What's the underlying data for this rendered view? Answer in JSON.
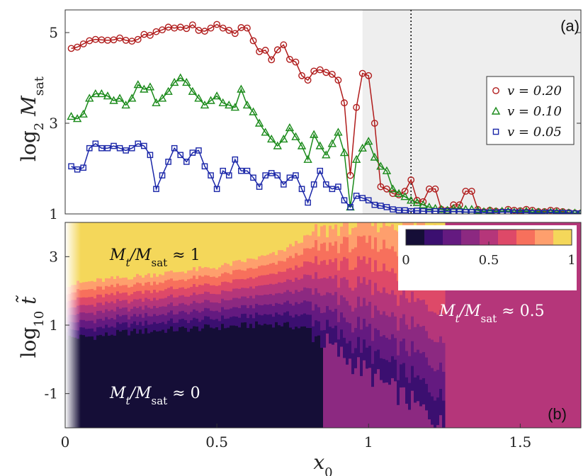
{
  "chart_data": [
    {
      "type": "line",
      "panel_label": "(a)",
      "ylabel": "log₂ M_sat",
      "xlim": [
        0,
        1.7
      ],
      "ylim": [
        1,
        5.5
      ],
      "yticks": [
        "1",
        "3",
        "5"
      ],
      "shaded_region_x": [
        0.98,
        1.7
      ],
      "dotted_line_x": 1.14,
      "legend_position": "right",
      "series": [
        {
          "name": "v = 0.20",
          "color": "#b01c1c",
          "marker": "circle",
          "x": [
            0.02,
            0.04,
            0.06,
            0.08,
            0.1,
            0.12,
            0.14,
            0.16,
            0.18,
            0.2,
            0.22,
            0.24,
            0.26,
            0.28,
            0.3,
            0.32,
            0.34,
            0.36,
            0.38,
            0.4,
            0.42,
            0.44,
            0.46,
            0.48,
            0.5,
            0.52,
            0.54,
            0.56,
            0.58,
            0.6,
            0.62,
            0.64,
            0.66,
            0.68,
            0.7,
            0.72,
            0.74,
            0.76,
            0.78,
            0.8,
            0.82,
            0.84,
            0.86,
            0.88,
            0.9,
            0.92,
            0.94,
            0.96,
            0.98,
            1.0,
            1.02,
            1.04,
            1.06,
            1.08,
            1.1,
            1.12,
            1.14,
            1.16,
            1.18,
            1.2,
            1.22,
            1.24,
            1.26,
            1.28,
            1.3,
            1.32,
            1.34,
            1.36,
            1.38,
            1.4,
            1.42,
            1.44,
            1.46,
            1.48,
            1.5,
            1.52,
            1.54,
            1.56,
            1.58,
            1.6,
            1.62,
            1.64,
            1.66,
            1.68,
            1.7
          ],
          "values": [
            4.65,
            4.68,
            4.75,
            4.82,
            4.85,
            4.84,
            4.83,
            4.84,
            4.88,
            4.83,
            4.81,
            4.85,
            4.96,
            4.94,
            5.02,
            5.06,
            5.12,
            5.1,
            5.12,
            5.09,
            5.17,
            5.05,
            5.03,
            5.1,
            5.18,
            5.1,
            5.05,
            4.98,
            5.11,
            5.1,
            4.82,
            4.58,
            4.61,
            4.4,
            4.62,
            4.73,
            4.41,
            4.35,
            4.05,
            3.95,
            4.15,
            4.18,
            4.12,
            4.08,
            3.95,
            3.45,
            1.85,
            3.35,
            4.1,
            4.05,
            3.0,
            1.6,
            1.55,
            1.45,
            1.42,
            1.5,
            1.75,
            1.3,
            1.27,
            1.55,
            1.55,
            1.1,
            1.08,
            1.2,
            1.2,
            1.5,
            1.5,
            1.1,
            1.05,
            1.08,
            1.06,
            1.05,
            1.1,
            1.08,
            1.07,
            1.1,
            1.08,
            1.05,
            1.05,
            1.08,
            1.07,
            1.05,
            1.03,
            1.02,
            1.02
          ]
        },
        {
          "name": "v = 0.10",
          "color": "#1a8a1a",
          "marker": "triangle",
          "x": [
            0.02,
            0.04,
            0.06,
            0.08,
            0.1,
            0.12,
            0.14,
            0.16,
            0.18,
            0.2,
            0.22,
            0.24,
            0.26,
            0.28,
            0.3,
            0.32,
            0.34,
            0.36,
            0.38,
            0.4,
            0.42,
            0.44,
            0.46,
            0.48,
            0.5,
            0.52,
            0.54,
            0.56,
            0.58,
            0.6,
            0.62,
            0.64,
            0.66,
            0.68,
            0.7,
            0.72,
            0.74,
            0.76,
            0.78,
            0.8,
            0.82,
            0.84,
            0.86,
            0.88,
            0.9,
            0.92,
            0.94,
            0.96,
            0.98,
            1.0,
            1.02,
            1.04,
            1.06,
            1.08,
            1.1,
            1.12,
            1.14,
            1.16,
            1.18,
            1.2,
            1.22,
            1.24,
            1.26,
            1.28,
            1.3,
            1.32,
            1.34,
            1.36,
            1.38,
            1.4,
            1.42,
            1.44,
            1.46,
            1.48,
            1.5,
            1.52,
            1.54,
            1.56,
            1.58,
            1.6,
            1.62,
            1.64,
            1.66,
            1.68,
            1.7
          ],
          "values": [
            3.15,
            3.1,
            3.2,
            3.55,
            3.65,
            3.65,
            3.6,
            3.5,
            3.55,
            3.4,
            3.55,
            3.85,
            3.75,
            3.8,
            3.45,
            3.55,
            3.7,
            3.9,
            4.0,
            3.9,
            3.7,
            3.55,
            3.4,
            3.5,
            3.6,
            3.45,
            3.4,
            3.35,
            3.75,
            3.4,
            3.25,
            3.0,
            2.8,
            2.65,
            2.5,
            2.65,
            2.9,
            2.7,
            2.5,
            2.2,
            2.75,
            2.5,
            2.3,
            2.55,
            2.8,
            2.35,
            1.15,
            2.2,
            2.45,
            2.6,
            2.25,
            2.05,
            1.95,
            1.55,
            1.45,
            1.38,
            1.3,
            1.25,
            1.2,
            1.15,
            1.12,
            1.1,
            1.08,
            1.12,
            1.12,
            1.1,
            1.1,
            1.08,
            1.05,
            1.07,
            1.05,
            1.06,
            1.06,
            1.04,
            1.05,
            1.06,
            1.04,
            1.04,
            1.03,
            1.04,
            1.04,
            1.03,
            1.02,
            1.02,
            1.02
          ]
        },
        {
          "name": "v = 0.05",
          "color": "#1a26a8",
          "marker": "square",
          "x": [
            0.02,
            0.04,
            0.06,
            0.08,
            0.1,
            0.12,
            0.14,
            0.16,
            0.18,
            0.2,
            0.22,
            0.24,
            0.26,
            0.28,
            0.3,
            0.32,
            0.34,
            0.36,
            0.38,
            0.4,
            0.42,
            0.44,
            0.46,
            0.48,
            0.5,
            0.52,
            0.54,
            0.56,
            0.58,
            0.6,
            0.62,
            0.64,
            0.66,
            0.68,
            0.7,
            0.72,
            0.74,
            0.76,
            0.78,
            0.8,
            0.82,
            0.84,
            0.86,
            0.88,
            0.9,
            0.92,
            0.94,
            0.96,
            0.98,
            1.0,
            1.02,
            1.04,
            1.06,
            1.08,
            1.1,
            1.12,
            1.14,
            1.16,
            1.18,
            1.2,
            1.22,
            1.24,
            1.26,
            1.28,
            1.3,
            1.32,
            1.34,
            1.36,
            1.38,
            1.4,
            1.42,
            1.44,
            1.46,
            1.48,
            1.5,
            1.52,
            1.54,
            1.56,
            1.58,
            1.6,
            1.62,
            1.64,
            1.66,
            1.68,
            1.7
          ],
          "values": [
            2.05,
            1.98,
            2.02,
            2.45,
            2.55,
            2.45,
            2.45,
            2.5,
            2.45,
            2.4,
            2.45,
            2.55,
            2.5,
            2.3,
            1.55,
            1.85,
            2.15,
            2.45,
            2.3,
            2.15,
            2.35,
            2.4,
            2.05,
            1.85,
            1.55,
            1.95,
            1.85,
            2.2,
            1.95,
            1.95,
            1.8,
            1.6,
            1.85,
            1.9,
            1.85,
            1.65,
            1.8,
            1.85,
            1.55,
            1.25,
            1.65,
            1.95,
            1.65,
            1.55,
            1.6,
            1.3,
            1.15,
            1.4,
            1.35,
            1.3,
            1.2,
            1.18,
            1.15,
            1.1,
            1.08,
            1.08,
            1.06,
            1.07,
            1.06,
            1.05,
            1.06,
            1.06,
            1.06,
            1.05,
            1.05,
            1.04,
            1.04,
            1.04,
            1.03,
            1.03,
            1.03,
            1.04,
            1.04,
            1.03,
            1.03,
            1.03,
            1.02,
            1.02,
            1.02,
            1.03,
            1.02,
            1.02,
            1.02,
            1.01,
            1.01
          ]
        }
      ]
    },
    {
      "type": "heatmap",
      "panel_label": "(b)",
      "xlabel": "x₀",
      "ylabel": "log₁₀ t̃",
      "xlim": [
        0,
        1.7
      ],
      "ylim": [
        -2,
        4
      ],
      "xticks": [
        "0",
        "0.5",
        "1",
        "1.5"
      ],
      "yticks": [
        "-1",
        "1",
        "3"
      ],
      "colorbar": {
        "ticks": [
          "0",
          "0.5",
          "1"
        ],
        "levels": 9,
        "colors": [
          "#150e37",
          "#3b0f70",
          "#641a80",
          "#8c2981",
          "#b5367a",
          "#de4968",
          "#f7705c",
          "#fe9f6d",
          "#f4d75a"
        ],
        "position": "top-right"
      },
      "annotations": [
        {
          "text": "M_t/M_sat ≈ 1",
          "region": "top-left"
        },
        {
          "text": "M_t/M_sat ≈ 0.5",
          "region": "right"
        },
        {
          "text": "M_t/M_sat ≈ 0",
          "region": "bottom-left"
        }
      ],
      "transition_profile": {
        "x": [
          0.02,
          0.1,
          0.2,
          0.3,
          0.4,
          0.5,
          0.6,
          0.7,
          0.8,
          0.9,
          1.0,
          1.1,
          1.2,
          1.25
        ],
        "dark_top_log10t": [
          0.65,
          0.68,
          0.8,
          0.85,
          0.9,
          0.95,
          1.0,
          1.05,
          0.9,
          0.2,
          -0.4,
          -1.0,
          -1.6,
          -2.0
        ],
        "bright_bottom_log10t": [
          2.2,
          2.3,
          2.4,
          2.5,
          2.6,
          2.7,
          2.9,
          3.1,
          3.6,
          3.9,
          4.0,
          4.0,
          4.0,
          4.0
        ]
      },
      "plateau_value": 0.5
    }
  ]
}
